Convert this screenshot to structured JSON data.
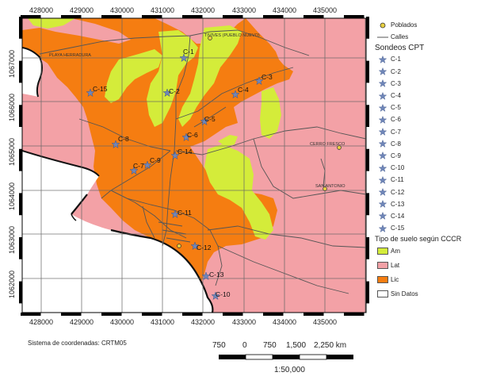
{
  "map": {
    "x_ticks": [
      "428000",
      "429000",
      "430000",
      "431000",
      "432000",
      "433000",
      "434000",
      "435000"
    ],
    "y_ticks": [
      "1067000",
      "1066000",
      "1065000",
      "1064000",
      "1063000",
      "1062000"
    ],
    "places": [
      "PLAYA HERRADURA",
      "TIVIVES (PUEBLO NUEVO)",
      "CERRO FRESCO",
      "SAN ANTONIO"
    ],
    "cpt_points": [
      "C-1",
      "C-2",
      "C-3",
      "C-4",
      "C-5",
      "C-6",
      "C-7",
      "C-8",
      "C-9",
      "C-10",
      "C-11",
      "C-12",
      "C-13",
      "C-14",
      "C-15"
    ],
    "colors": {
      "Am": "#d4ec3a",
      "Lat": "#f3a1a6",
      "Lic": "#f57d11",
      "sea": "#ffffff",
      "cpt": "#6f86b8",
      "roads": "#555555"
    }
  },
  "legend": {
    "poblados": "Poblados",
    "calles": "Calles",
    "sondeos_title": "Sondeos CPT",
    "cpt_items": [
      "C-1",
      "C-2",
      "C-3",
      "C-4",
      "C-5",
      "C-6",
      "C-7",
      "C-8",
      "C-9",
      "C-10",
      "C-11",
      "C-12",
      "C-13",
      "C-14",
      "C-15"
    ],
    "suelo_title": "Tipo de suelo según CCCR",
    "soil_classes": [
      "Am",
      "Lat",
      "Lic",
      "Sin Datos"
    ]
  },
  "footer": {
    "crs": "Sistema de coordenadas: CRTM05",
    "scale_ticks": [
      "750",
      "0",
      "750",
      "1,500",
      "2,250 km"
    ],
    "scale_ratio": "1:50,000"
  }
}
